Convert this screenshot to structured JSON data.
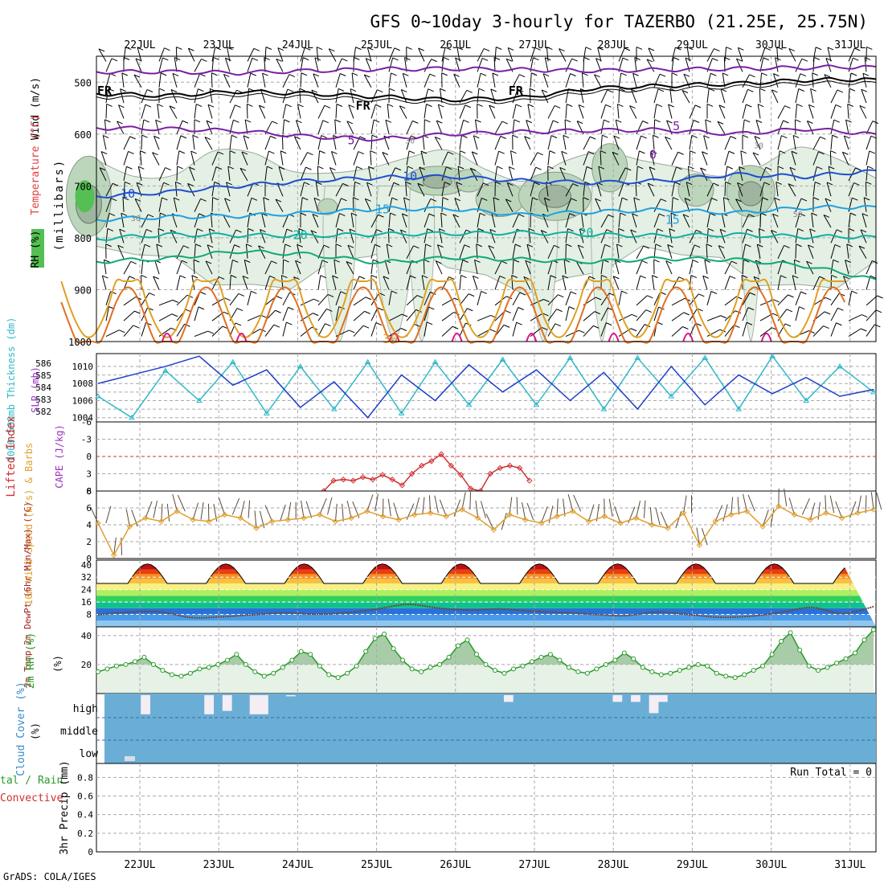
{
  "title": "GFS 0~10day 3-hourly for TAZERBO (21.25E, 25.75N)",
  "footer": "GrADS: COLA/IGES",
  "colors": {
    "grid": "#aaaaaa",
    "rh_fill": "#e3f0e3",
    "rh_fill2": "#bcd6bc",
    "rh_fill3": "#9fb59f",
    "rh_fill4": "#54c054",
    "freezing": "#000000",
    "purple": "#7a1fa2",
    "blue": "#1f4fd0",
    "lightblue": "#20a0e0",
    "teal": "#10b0a0",
    "green": "#10a878",
    "gold": "#e0a020",
    "orange": "#e07020",
    "magenta": "#e0108a",
    "slp": "#1f3fc8",
    "thickness": "#30b8c8",
    "cape": "#9a30c0",
    "li": "#d03030",
    "wind10": "#e0a030",
    "dew": "#6b4a2a",
    "rh2m": "#2a9a2a",
    "cloud": "#6aaed6",
    "cloud_gap": "#f4eef4"
  },
  "chart_data": [
    {
      "type": "line",
      "panel": "upper-air",
      "ylabel": "(millibars)",
      "ylim": [
        450,
        1000
      ],
      "yticks": [
        "500",
        "600",
        "700",
        "800",
        "900",
        "1000"
      ],
      "legend_labels": {
        "wind": "Wind (m/s)",
        "temp": "Temperature (°C)",
        "rh": "RH (%)"
      },
      "x_dates": [
        "22JUL",
        "23JUL",
        "24JUL",
        "25JUL",
        "26JUL",
        "27JUL",
        "28JUL",
        "29JUL",
        "30JUL",
        "31JUL"
      ],
      "contour_labels": [
        {
          "text": "FR",
          "day": 0.05,
          "p": 517
        },
        {
          "text": "FR",
          "day": 3.35,
          "p": 545
        },
        {
          "text": "FR",
          "day": 5.3,
          "p": 517
        },
        {
          "text": "5",
          "day": 3.2,
          "p": 612
        },
        {
          "text": "5",
          "day": 7.35,
          "p": 585
        },
        {
          "text": "0",
          "day": 7.05,
          "p": 640
        },
        {
          "text": "10",
          "day": 0.35,
          "p": 715
        },
        {
          "text": "10",
          "day": 3.95,
          "p": 682
        },
        {
          "text": "15",
          "day": 3.6,
          "p": 745
        },
        {
          "text": "15",
          "day": 7.3,
          "p": 765
        },
        {
          "text": "20",
          "day": 2.55,
          "p": 795
        },
        {
          "text": "20",
          "day": 6.2,
          "p": 790
        },
        {
          "text": "30",
          "day": 3.7,
          "p": 995
        },
        {
          "text": "30",
          "day": 3.95,
          "p": 610
        },
        {
          "text": "30",
          "day": 0.45,
          "p": 760
        },
        {
          "text": "30",
          "day": 8.4,
          "p": 620
        },
        {
          "text": "50",
          "day": 8.9,
          "p": 752
        }
      ],
      "isotherms": [
        {
          "name": "-5C",
          "color": "#7a1fa2",
          "values": [
            480,
            480,
            482,
            478,
            475,
            474,
            476,
            478,
            476,
            474,
            472,
            470
          ]
        },
        {
          "name": "0C",
          "color": "#000000",
          "values": [
            522,
            526,
            518,
            522,
            528,
            534,
            530,
            512,
            507,
            503,
            496,
            494
          ]
        },
        {
          "name": "5C",
          "color": "#7a1fa2",
          "values": [
            588,
            590,
            594,
            605,
            610,
            600,
            596,
            593,
            592,
            600,
            590,
            600
          ]
        },
        {
          "name": "10C",
          "color": "#1f4fd0",
          "values": [
            720,
            712,
            700,
            690,
            684,
            682,
            690,
            694,
            690,
            678,
            682,
            670
          ]
        },
        {
          "name": "15C",
          "color": "#20a0e0",
          "values": [
            765,
            760,
            758,
            752,
            744,
            744,
            756,
            750,
            746,
            752,
            742,
            740
          ]
        },
        {
          "name": "20C",
          "color": "#10b0a0",
          "values": [
            802,
            794,
            795,
            796,
            793,
            792,
            790,
            794,
            796,
            794,
            798,
            798
          ]
        },
        {
          "name": "25C",
          "color": "#10a878",
          "values": [
            846,
            840,
            826,
            832,
            848,
            838,
            842,
            846,
            840,
            842,
            854,
            880
          ]
        }
      ]
    },
    {
      "type": "line",
      "panel": "slp-thickness",
      "ylabel_left": "1000-500mb Thickness (dm)",
      "ylabel_right": "SLP (mb)",
      "thickness_ticks": [
        "586",
        "585",
        "584",
        "583",
        "582"
      ],
      "slp_ticks": [
        "1010",
        "1008",
        "1006",
        "1004"
      ],
      "slp_ylim": [
        1003.5,
        1011.5
      ],
      "slp": [
        1008.0,
        1009.0,
        1010.0,
        1011.2,
        1007.8,
        1009.6,
        1005.2,
        1008.2,
        1004.0,
        1009.0,
        1006.0,
        1010.2,
        1007.0,
        1009.6,
        1006.0,
        1009.3,
        1005.0,
        1010.0,
        1005.5,
        1009.0,
        1006.8,
        1008.7,
        1006.5,
        1007.3
      ],
      "thickness": [
        1006.5,
        1004.0,
        1009.5,
        1006.0,
        1010.5,
        1004.5,
        1010.0,
        1005.0,
        1010.5,
        1004.5,
        1010.5,
        1005.5,
        1010.8,
        1005.5,
        1011.0,
        1005.0,
        1011.0,
        1006.5,
        1011.0,
        1005.0,
        1011.2,
        1006.0,
        1010.0,
        1007.0
      ]
    },
    {
      "type": "line",
      "panel": "li-cape",
      "ylabel_left": "Lifted Index",
      "ylabel_right": "CAPE (J/kg)",
      "yticks": [
        "-6",
        "-3",
        "0",
        "3",
        "6"
      ],
      "ylim": [
        -6,
        6
      ],
      "li_start_day": 2.85,
      "li_step": 0.125,
      "lifted_index": [
        6,
        4.2,
        4.0,
        4.2,
        3.6,
        4.0,
        3.2,
        4.0,
        5.0,
        3.0,
        1.6,
        0.8,
        -0.4,
        1.6,
        3.2,
        5.6,
        6,
        3.0,
        2.0,
        1.6,
        2.0,
        4.2
      ]
    },
    {
      "type": "line",
      "panel": "wind10m",
      "ylabel": "10m Wind Speed (m/s) & Barbs",
      "yticks": [
        "0",
        "2",
        "4",
        "6",
        "8"
      ],
      "ylim": [
        0,
        8
      ],
      "speed": [
        4.2,
        0.4,
        3.8,
        4.8,
        4.4,
        5.6,
        4.6,
        4.4,
        5.2,
        4.8,
        3.6,
        4.4,
        4.6,
        4.8,
        5.2,
        4.4,
        4.8,
        5.6,
        5.0,
        4.6,
        5.2,
        5.4,
        5.0,
        5.8,
        4.8,
        3.4,
        5.2,
        4.6,
        4.2,
        5.0,
        5.6,
        4.4,
        5.0,
        4.2,
        4.8,
        4.0,
        3.6,
        5.4,
        1.6,
        4.4,
        5.2,
        5.6,
        3.8,
        6.2,
        5.2,
        4.6,
        5.4,
        4.8,
        5.4,
        5.8
      ]
    },
    {
      "type": "area",
      "panel": "temperature-2m",
      "ylabel": "2m Temp 2m DewPt (6hr Min/Max) (°C)",
      "yticks": [
        "8",
        "16",
        "24",
        "32",
        "40"
      ],
      "ylim": [
        0,
        43
      ],
      "temp_min": 28,
      "temp_max": 40.5,
      "dewpoint": [
        7.8,
        9.5,
        9.6,
        6.0,
        6.5,
        7.8,
        9.0,
        8.2,
        9.0,
        11.5,
        14.5,
        12.0,
        10.8,
        11.5,
        10.0,
        9.2,
        8.0,
        7.2,
        9.5,
        8.0,
        6.2,
        6.8,
        9.2,
        12.5,
        8.6,
        13.0
      ]
    },
    {
      "type": "area",
      "panel": "rh-2m",
      "ylabel": "2m RH (%)",
      "yticks": [
        "20",
        "40"
      ],
      "ylim": [
        0,
        46
      ],
      "rh": [
        15,
        17,
        19,
        20,
        22,
        25,
        20,
        16,
        13,
        12,
        14,
        17,
        18,
        20,
        23,
        27,
        20,
        15,
        12,
        14,
        18,
        23,
        29,
        27,
        19,
        13,
        11,
        14,
        19,
        29,
        38,
        41,
        31,
        23,
        17,
        15,
        18,
        20,
        25,
        33,
        37,
        27,
        20,
        16,
        14,
        17,
        19,
        22,
        25,
        27,
        23,
        18,
        15,
        14,
        17,
        20,
        23,
        28,
        24,
        18,
        15,
        13,
        14,
        16,
        18,
        20,
        19,
        14,
        12,
        11,
        13,
        16,
        19,
        27,
        36,
        42,
        30,
        19,
        16,
        18,
        21,
        24,
        28,
        37,
        44
      ]
    },
    {
      "type": "bar",
      "panel": "cloud-cover",
      "ylabel": "Cloud Cover (%)",
      "levels": [
        "high",
        "middle",
        "low"
      ],
      "high_cover": [
        100,
        100,
        100,
        100,
        15,
        100,
        100,
        100,
        100,
        100,
        100,
        15,
        100,
        30,
        100,
        100,
        15,
        15,
        100,
        100,
        95,
        100,
        100,
        100,
        100,
        100,
        100,
        100,
        100,
        100,
        100,
        100,
        100,
        100,
        100,
        100,
        100,
        100,
        100,
        100,
        100,
        100,
        100,
        100,
        70,
        100,
        100,
        100,
        100,
        100,
        100,
        100,
        100,
        100,
        100,
        100,
        70,
        100,
        70,
        100,
        20,
        70,
        100,
        100,
        100,
        100,
        100,
        100,
        100,
        100,
        100,
        100,
        100,
        100,
        100,
        100,
        100,
        100,
        100,
        100,
        100,
        100,
        100,
        100,
        100
      ],
      "low_cover": [
        100,
        100,
        100,
        100,
        100,
        100,
        100,
        100,
        100,
        100,
        100,
        100,
        100,
        100,
        100,
        100,
        100,
        100,
        100,
        100,
        100,
        100,
        100,
        100,
        100,
        100,
        100,
        100,
        100,
        100,
        100,
        100,
        100,
        100,
        100,
        100,
        100,
        100,
        100,
        100,
        100,
        100,
        100,
        100,
        100,
        100,
        100,
        100,
        100,
        100,
        100,
        100,
        100,
        100,
        100,
        100,
        100,
        100,
        100,
        100,
        100,
        100,
        100,
        100,
        100,
        100,
        100,
        100,
        100,
        100,
        100,
        100,
        100,
        100,
        100,
        100,
        100,
        100,
        100,
        100,
        100,
        100,
        100,
        100,
        100
      ]
    },
    {
      "type": "bar",
      "panel": "precip",
      "ylabel": "3hr Precip (mm)",
      "legend_left_top": "tal / Rain",
      "legend_left_bottom": "Convective",
      "run_total": "Run Total = 0",
      "yticks": [
        "0",
        "0.2",
        "0.4",
        "0.6",
        "0.8"
      ],
      "ylim": [
        0,
        0.95
      ],
      "values": []
    }
  ]
}
